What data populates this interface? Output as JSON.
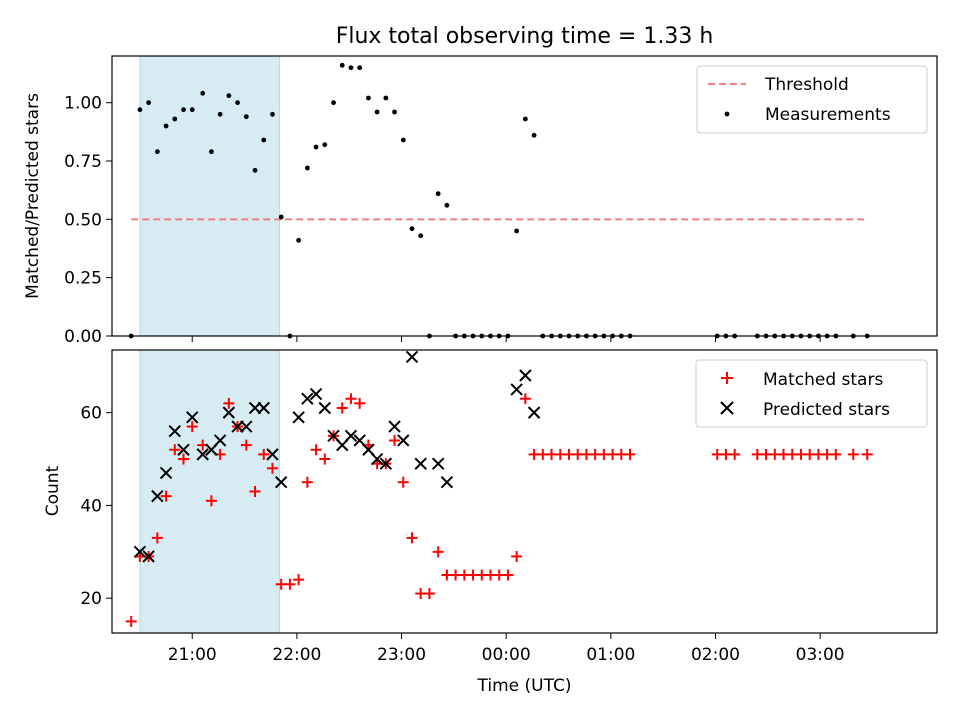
{
  "figure_title": "Flux total observing time = 1.33 h",
  "colors": {
    "threshold": "#f08080",
    "measurement": "#000000",
    "matched": "#ff0000",
    "predicted": "#000000",
    "shaded_region": "#add8e6"
  },
  "chart_data": [
    {
      "type": "scatter",
      "ylabel": "Matched/Predicted stars",
      "xlim": [
        "20:14",
        "04:07"
      ],
      "ylim": [
        0,
        1.2
      ],
      "y_ticks": [
        "0.00",
        "0.25",
        "0.50",
        "0.75",
        "1.00"
      ],
      "legend_position": "top-right",
      "shaded_x_range": [
        "20:30",
        "21:50"
      ],
      "threshold": {
        "name": "Threshold",
        "value": 0.5,
        "x_range": [
          "20:25",
          "03:27"
        ]
      },
      "series": [
        {
          "name": "Measurements",
          "points": [
            [
              "20:25",
              0.0
            ],
            [
              "20:30",
              0.97
            ],
            [
              "20:35",
              1.0
            ],
            [
              "20:40",
              0.79
            ],
            [
              "20:45",
              0.9
            ],
            [
              "20:50",
              0.93
            ],
            [
              "20:55",
              0.97
            ],
            [
              "21:00",
              0.97
            ],
            [
              "21:06",
              1.04
            ],
            [
              "21:11",
              0.79
            ],
            [
              "21:16",
              0.95
            ],
            [
              "21:21",
              1.03
            ],
            [
              "21:26",
              1.0
            ],
            [
              "21:31",
              0.94
            ],
            [
              "21:36",
              0.71
            ],
            [
              "21:41",
              0.84
            ],
            [
              "21:46",
              0.95
            ],
            [
              "21:51",
              0.51
            ],
            [
              "21:56",
              0.0
            ],
            [
              "22:01",
              0.41
            ],
            [
              "22:06",
              0.72
            ],
            [
              "22:11",
              0.81
            ],
            [
              "22:16",
              0.82
            ],
            [
              "22:21",
              1.0
            ],
            [
              "22:26",
              1.16
            ],
            [
              "22:31",
              1.15
            ],
            [
              "22:36",
              1.15
            ],
            [
              "22:41",
              1.02
            ],
            [
              "22:46",
              0.96
            ],
            [
              "22:51",
              1.02
            ],
            [
              "22:56",
              0.96
            ],
            [
              "23:01",
              0.84
            ],
            [
              "23:06",
              0.46
            ],
            [
              "23:11",
              0.43
            ],
            [
              "23:16",
              0.0
            ],
            [
              "23:21",
              0.61
            ],
            [
              "23:26",
              0.56
            ],
            [
              "23:31",
              0.0
            ],
            [
              "23:36",
              0.0
            ],
            [
              "23:41",
              0.0
            ],
            [
              "23:46",
              0.0
            ],
            [
              "23:51",
              0.0
            ],
            [
              "23:56",
              0.0
            ],
            [
              "00:01",
              0.0
            ],
            [
              "00:06",
              0.45
            ],
            [
              "00:11",
              0.93
            ],
            [
              "00:16",
              0.86
            ],
            [
              "00:21",
              0.0
            ],
            [
              "00:26",
              0.0
            ],
            [
              "00:31",
              0.0
            ],
            [
              "00:36",
              0.0
            ],
            [
              "00:41",
              0.0
            ],
            [
              "00:46",
              0.0
            ],
            [
              "00:51",
              0.0
            ],
            [
              "00:56",
              0.0
            ],
            [
              "01:01",
              0.0
            ],
            [
              "01:06",
              0.0
            ],
            [
              "01:11",
              0.0
            ],
            [
              "02:01",
              0.0
            ],
            [
              "02:06",
              0.0
            ],
            [
              "02:11",
              0.0
            ],
            [
              "02:24",
              0.0
            ],
            [
              "02:29",
              0.0
            ],
            [
              "02:34",
              0.0
            ],
            [
              "02:39",
              0.0
            ],
            [
              "02:44",
              0.0
            ],
            [
              "02:49",
              0.0
            ],
            [
              "02:54",
              0.0
            ],
            [
              "02:59",
              0.0
            ],
            [
              "03:04",
              0.0
            ],
            [
              "03:09",
              0.0
            ],
            [
              "03:19",
              0.0
            ],
            [
              "03:27",
              0.0
            ]
          ]
        }
      ]
    },
    {
      "type": "scatter",
      "xlabel": "Time (UTC)",
      "ylabel": "Count",
      "xlim": [
        "20:14",
        "04:07"
      ],
      "ylim": [
        12.5,
        73.5
      ],
      "x_ticks": [
        "21:00",
        "22:00",
        "23:00",
        "00:00",
        "01:00",
        "02:00",
        "03:00"
      ],
      "y_ticks": [
        "20",
        "40",
        "60"
      ],
      "legend_position": "top-right",
      "shaded_x_range": [
        "20:30",
        "21:50"
      ],
      "series": [
        {
          "name": "Matched stars",
          "marker": "plus",
          "points": [
            [
              "20:25",
              15
            ],
            [
              "20:30",
              29
            ],
            [
              "20:35",
              29
            ],
            [
              "20:40",
              33
            ],
            [
              "20:45",
              42
            ],
            [
              "20:50",
              52
            ],
            [
              "20:55",
              50
            ],
            [
              "21:00",
              57
            ],
            [
              "21:06",
              53
            ],
            [
              "21:11",
              41
            ],
            [
              "21:16",
              51
            ],
            [
              "21:21",
              62
            ],
            [
              "21:26",
              57
            ],
            [
              "21:31",
              53
            ],
            [
              "21:36",
              43
            ],
            [
              "21:41",
              51
            ],
            [
              "21:46",
              48
            ],
            [
              "21:51",
              23
            ],
            [
              "21:56",
              23
            ],
            [
              "22:01",
              24
            ],
            [
              "22:06",
              45
            ],
            [
              "22:11",
              52
            ],
            [
              "22:16",
              50
            ],
            [
              "22:21",
              55
            ],
            [
              "22:26",
              61
            ],
            [
              "22:31",
              63
            ],
            [
              "22:36",
              62
            ],
            [
              "22:41",
              53
            ],
            [
              "22:46",
              49
            ],
            [
              "22:51",
              49
            ],
            [
              "22:56",
              54
            ],
            [
              "23:01",
              45
            ],
            [
              "23:06",
              33
            ],
            [
              "23:11",
              21
            ],
            [
              "23:16",
              21
            ],
            [
              "23:21",
              30
            ],
            [
              "23:26",
              25
            ],
            [
              "23:31",
              25
            ],
            [
              "23:36",
              25
            ],
            [
              "23:41",
              25
            ],
            [
              "23:46",
              25
            ],
            [
              "23:51",
              25
            ],
            [
              "23:56",
              25
            ],
            [
              "00:01",
              25
            ],
            [
              "00:06",
              29
            ],
            [
              "00:11",
              63
            ],
            [
              "00:16",
              51
            ],
            [
              "00:21",
              51
            ],
            [
              "00:26",
              51
            ],
            [
              "00:31",
              51
            ],
            [
              "00:36",
              51
            ],
            [
              "00:41",
              51
            ],
            [
              "00:46",
              51
            ],
            [
              "00:51",
              51
            ],
            [
              "00:56",
              51
            ],
            [
              "01:01",
              51
            ],
            [
              "01:06",
              51
            ],
            [
              "01:11",
              51
            ],
            [
              "02:01",
              51
            ],
            [
              "02:06",
              51
            ],
            [
              "02:11",
              51
            ],
            [
              "02:24",
              51
            ],
            [
              "02:29",
              51
            ],
            [
              "02:34",
              51
            ],
            [
              "02:39",
              51
            ],
            [
              "02:44",
              51
            ],
            [
              "02:49",
              51
            ],
            [
              "02:54",
              51
            ],
            [
              "02:59",
              51
            ],
            [
              "03:04",
              51
            ],
            [
              "03:09",
              51
            ],
            [
              "03:19",
              51
            ],
            [
              "03:27",
              51
            ]
          ]
        },
        {
          "name": "Predicted stars",
          "marker": "x",
          "points": [
            [
              "20:30",
              30
            ],
            [
              "20:35",
              29
            ],
            [
              "20:40",
              42
            ],
            [
              "20:45",
              47
            ],
            [
              "20:50",
              56
            ],
            [
              "20:55",
              52
            ],
            [
              "21:00",
              59
            ],
            [
              "21:06",
              51
            ],
            [
              "21:11",
              52
            ],
            [
              "21:16",
              54
            ],
            [
              "21:21",
              60
            ],
            [
              "21:26",
              57
            ],
            [
              "21:31",
              57
            ],
            [
              "21:36",
              61
            ],
            [
              "21:41",
              61
            ],
            [
              "21:46",
              51
            ],
            [
              "21:51",
              45
            ],
            [
              "22:01",
              59
            ],
            [
              "22:06",
              63
            ],
            [
              "22:11",
              64
            ],
            [
              "22:16",
              61
            ],
            [
              "22:21",
              55
            ],
            [
              "22:26",
              53
            ],
            [
              "22:31",
              55
            ],
            [
              "22:36",
              54
            ],
            [
              "22:41",
              52
            ],
            [
              "22:46",
              50
            ],
            [
              "22:51",
              49
            ],
            [
              "22:56",
              57
            ],
            [
              "23:01",
              54
            ],
            [
              "23:06",
              72
            ],
            [
              "23:11",
              49
            ],
            [
              "23:21",
              49
            ],
            [
              "23:26",
              45
            ],
            [
              "00:06",
              65
            ],
            [
              "00:11",
              68
            ],
            [
              "00:16",
              60
            ]
          ]
        }
      ]
    }
  ]
}
